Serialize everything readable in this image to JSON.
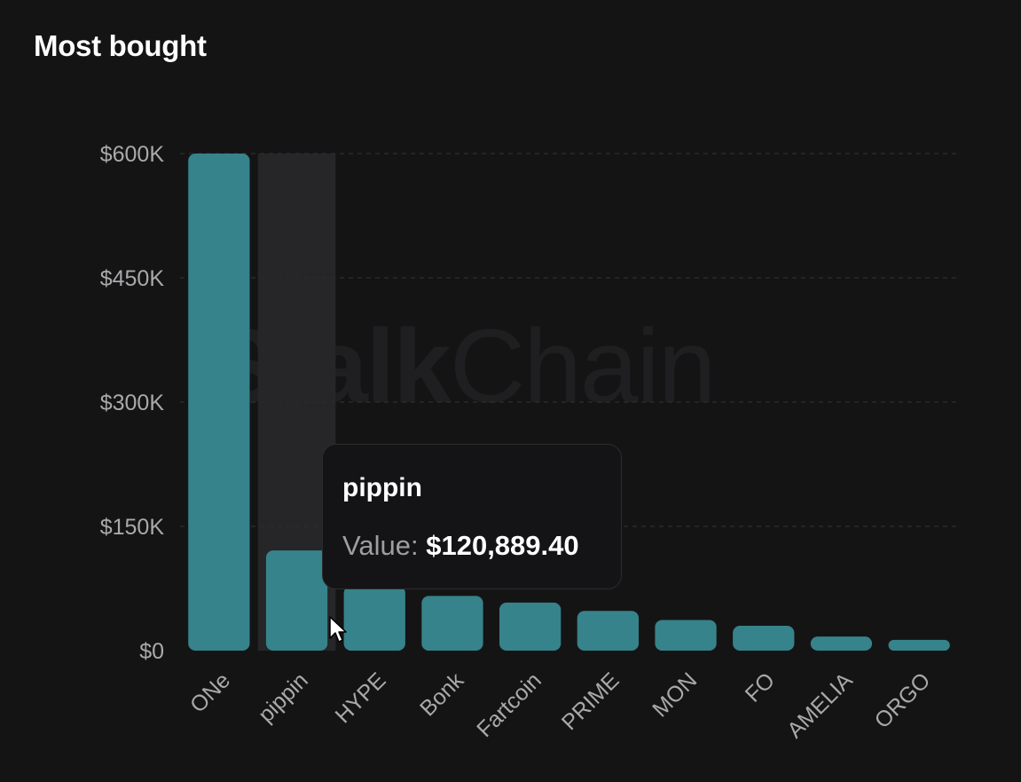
{
  "header": {
    "title": "Most bought"
  },
  "watermark": {
    "bold": "Stalk",
    "regular": "Chain"
  },
  "tooltip": {
    "title": "pippin",
    "label": "Value:",
    "value": "$120,889.40"
  },
  "colors": {
    "bar": "#36838b",
    "grid": "#2a2a2c",
    "hover_band": "#262527",
    "background": "#151415"
  },
  "chart_data": {
    "type": "bar",
    "title": "Most bought",
    "categories": [
      "ONe",
      "pippin",
      "HYPE",
      "Bonk",
      "Fartcoin",
      "PRIME",
      "MON",
      "FO",
      "AMELIA",
      "ORGO"
    ],
    "values": [
      600000,
      120889.4,
      78000,
      66000,
      58000,
      48000,
      37000,
      30000,
      17000,
      13000
    ],
    "ylim": [
      0,
      600000
    ],
    "yticks": [
      {
        "value": 0,
        "label": "$0"
      },
      {
        "value": 150000,
        "label": "$150K"
      },
      {
        "value": 300000,
        "label": "$300K"
      },
      {
        "value": 450000,
        "label": "$450K"
      },
      {
        "value": 600000,
        "label": "$600K"
      }
    ],
    "highlighted_category": "pippin",
    "grid": true
  }
}
